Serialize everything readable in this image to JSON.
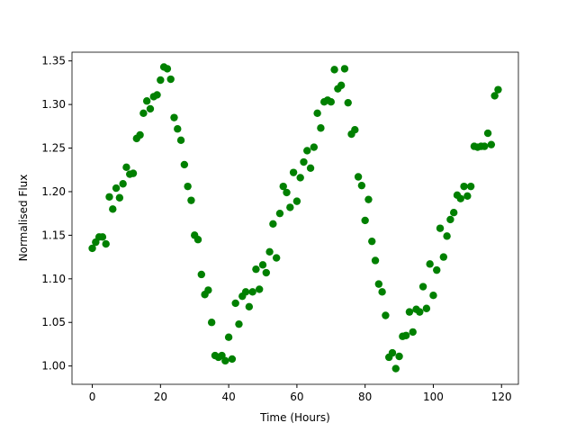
{
  "chart_data": {
    "type": "scatter",
    "x_label": "Time (Hours)",
    "y_label": "Normalised Flux",
    "color": "#008000",
    "x": [
      0,
      1,
      2,
      3,
      4,
      5,
      6,
      7,
      8,
      9,
      10,
      11,
      12,
      13,
      14,
      15,
      16,
      17,
      18,
      19,
      20,
      21,
      22,
      23,
      24,
      25,
      26,
      27,
      28,
      29,
      30,
      31,
      32,
      33,
      34,
      35,
      36,
      37,
      38,
      39,
      40,
      41,
      42,
      43,
      44,
      45,
      46,
      47,
      48,
      49,
      50,
      51,
      52,
      53,
      54,
      55,
      56,
      57,
      58,
      59,
      60,
      61,
      62,
      63,
      64,
      65,
      66,
      67,
      68,
      69,
      70,
      71,
      72,
      73,
      74,
      75,
      76,
      77,
      78,
      79,
      80,
      81,
      82,
      83,
      84,
      85,
      86,
      87,
      88,
      89,
      90,
      91,
      92,
      93,
      94,
      95,
      96,
      97,
      98,
      99,
      100,
      101,
      102,
      103,
      104,
      105,
      106,
      107,
      108,
      109,
      110,
      111,
      112,
      113,
      114,
      115,
      116,
      117,
      118,
      119
    ],
    "values": [
      1.135,
      1.142,
      1.148,
      1.148,
      1.14,
      1.194,
      1.18,
      1.204,
      1.193,
      1.209,
      1.228,
      1.22,
      1.221,
      1.261,
      1.265,
      1.29,
      1.304,
      1.295,
      1.309,
      1.311,
      1.328,
      1.343,
      1.341,
      1.329,
      1.285,
      1.272,
      1.259,
      1.231,
      1.206,
      1.19,
      1.15,
      1.145,
      1.105,
      1.082,
      1.087,
      1.05,
      1.012,
      1.01,
      1.012,
      1.006,
      1.033,
      1.008,
      1.072,
      1.048,
      1.08,
      1.085,
      1.068,
      1.085,
      1.111,
      1.088,
      1.116,
      1.107,
      1.131,
      1.163,
      1.124,
      1.175,
      1.206,
      1.199,
      1.182,
      1.222,
      1.189,
      1.216,
      1.234,
      1.247,
      1.227,
      1.251,
      1.29,
      1.273,
      1.303,
      1.305,
      1.303,
      1.34,
      1.318,
      1.322,
      1.341,
      1.302,
      1.266,
      1.271,
      1.217,
      1.207,
      1.167,
      1.191,
      1.143,
      1.121,
      1.094,
      1.085,
      1.058,
      1.01,
      1.015,
      0.997,
      1.011,
      1.034,
      1.035,
      1.062,
      1.039,
      1.065,
      1.062,
      1.091,
      1.066,
      1.117,
      1.081,
      1.11,
      1.158,
      1.125,
      1.149,
      1.168,
      1.176,
      1.196,
      1.192,
      1.206,
      1.195,
      1.206,
      1.252,
      1.251,
      1.252,
      1.252,
      1.267,
      1.254,
      1.31,
      1.317
    ],
    "xlim": [
      -5.95,
      124.95
    ],
    "xticks": [
      0,
      20,
      40,
      60,
      80,
      100,
      120
    ],
    "ylim": [
      0.979,
      1.36
    ],
    "yticks": [
      {
        "value": 1,
        "label": "1.00"
      },
      1.05,
      {
        "value": 1.1,
        "label": "1.10"
      },
      1.15,
      {
        "value": 1.2,
        "label": "1.20"
      },
      1.25,
      {
        "value": 1.3,
        "label": "1.30"
      },
      1.35
    ],
    "grid": false
  }
}
